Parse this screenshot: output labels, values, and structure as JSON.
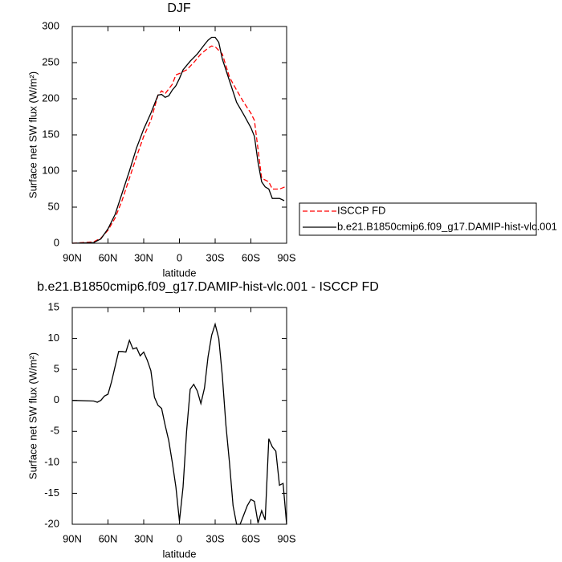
{
  "chart_data": [
    {
      "type": "line",
      "title": "DJF",
      "xlabel": "latitude",
      "ylabel": "Surface net SW flux (W/m²)",
      "xlim": [
        90,
        -90
      ],
      "xticks": [
        {
          "value": 90,
          "label": "90N"
        },
        {
          "value": 60,
          "label": "60N"
        },
        {
          "value": 30,
          "label": "30N"
        },
        0,
        {
          "value": -30,
          "label": "30S"
        },
        {
          "value": -60,
          "label": "60S"
        },
        {
          "value": -90,
          "label": "90S"
        }
      ],
      "ylim": [
        0,
        300
      ],
      "yticks": [
        0,
        50,
        100,
        150,
        200,
        250,
        300
      ],
      "legend": "right",
      "series": [
        {
          "name": "ISCCP FD",
          "color": "#ff0000",
          "line_style": "dashed",
          "x": [
            90,
            72,
            66,
            60,
            54,
            48,
            42,
            36,
            30,
            24,
            18,
            15,
            12,
            6,
            3,
            0,
            -6,
            -12,
            -18,
            -24,
            -27,
            -30,
            -36,
            -42,
            -48,
            -54,
            -60,
            -63,
            -69,
            -75,
            -78,
            -84,
            -90
          ],
          "values": [
            0,
            2,
            7,
            18,
            35,
            60,
            90,
            120,
            148,
            170,
            205,
            211,
            207,
            220,
            233,
            235,
            240,
            250,
            262,
            270,
            273,
            272,
            262,
            230,
            212,
            195,
            180,
            170,
            90,
            85,
            75,
            75,
            79
          ]
        },
        {
          "name": "b.e21.B1850cmip6.f09_g17.DAMIP-hist-vlc.001",
          "color": "#000000",
          "line_style": "solid",
          "x": [
            90,
            72,
            66,
            60,
            54,
            48,
            42,
            36,
            30,
            24,
            18,
            15,
            12,
            9,
            6,
            3,
            0,
            -3,
            -9,
            -15,
            -21,
            -24,
            -27,
            -30,
            -33,
            -36,
            -42,
            -48,
            -54,
            -60,
            -63,
            -66,
            -69,
            -72,
            -75,
            -78,
            -84,
            -88
          ],
          "values": [
            0,
            1,
            6,
            20,
            40,
            70,
            100,
            132,
            158,
            180,
            205,
            206,
            202,
            204,
            212,
            218,
            228,
            240,
            252,
            262,
            275,
            281,
            285,
            285,
            278,
            255,
            225,
            195,
            178,
            160,
            148,
            112,
            85,
            78,
            75,
            62,
            62,
            59
          ]
        }
      ]
    },
    {
      "type": "line",
      "title": "b.e21.B1850cmip6.f09_g17.DAMIP-hist-vlc.001 - ISCCP FD",
      "xlabel": "latitude",
      "ylabel": "Surface net SW flux (W/m²)",
      "xlim": [
        90,
        -90
      ],
      "xticks": [
        {
          "value": 90,
          "label": "90N"
        },
        {
          "value": 60,
          "label": "60N"
        },
        {
          "value": 30,
          "label": "30N"
        },
        0,
        {
          "value": -30,
          "label": "30S"
        },
        {
          "value": -60,
          "label": "60S"
        },
        {
          "value": -90,
          "label": "90S"
        }
      ],
      "ylim": [
        -20,
        15
      ],
      "yticks": [
        -20,
        -15,
        -10,
        -5,
        0,
        5,
        10,
        15
      ],
      "series": [
        {
          "color": "#000000",
          "line_style": "solid",
          "x": [
            90,
            72,
            69,
            66,
            63,
            60,
            57,
            54,
            51,
            48,
            45,
            42,
            39,
            36,
            33,
            30,
            27,
            24,
            21,
            18,
            15,
            12,
            9,
            6,
            3,
            0,
            -3,
            -6,
            -9,
            -12,
            -15,
            -18,
            -21,
            -24,
            -27,
            -30,
            -33,
            -36,
            -39,
            -42,
            -45,
            -48,
            -51,
            -54,
            -57,
            -60,
            -63,
            -66,
            -69,
            -72,
            -75,
            -78,
            -81,
            -84,
            -87,
            -90
          ],
          "values": [
            0,
            -0.1,
            -0.3,
            0,
            0.7,
            1,
            3,
            5.5,
            7.9,
            7.9,
            7.8,
            9.7,
            8.3,
            8.5,
            7.2,
            7.8,
            6.5,
            4.8,
            0.5,
            -0.8,
            -1.3,
            -4,
            -6.5,
            -10,
            -14,
            -19.5,
            -14,
            -5,
            1.8,
            2.6,
            1.5,
            -0.5,
            2,
            7,
            10.5,
            12.3,
            10,
            4,
            -4,
            -10,
            -17,
            -20,
            -20,
            -18.5,
            -17,
            -16,
            -16.3,
            -19.8,
            -17.8,
            -19.3,
            -6.2,
            -7.5,
            -8.2,
            -13.7,
            -13.4,
            -20
          ]
        }
      ]
    }
  ]
}
